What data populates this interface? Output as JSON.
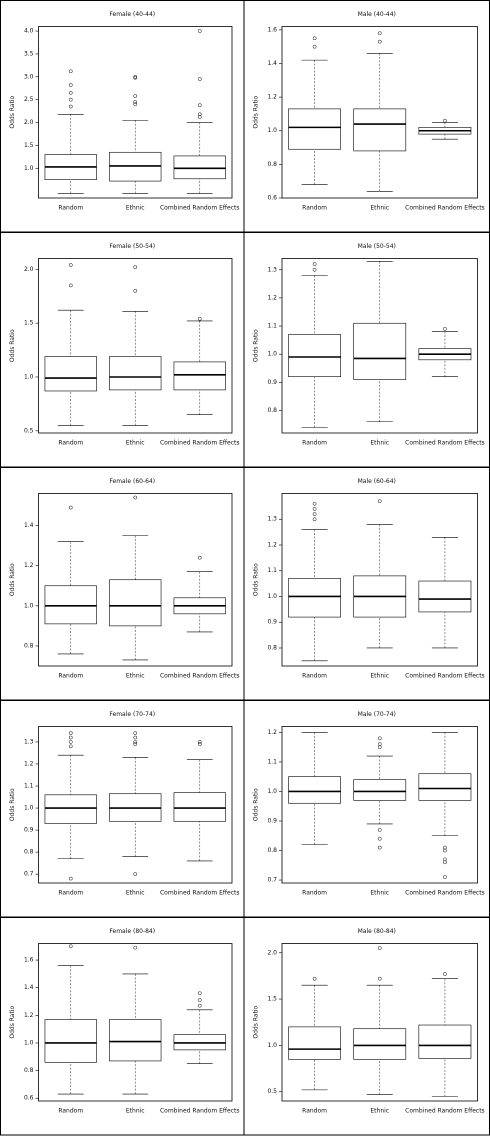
{
  "chart_data": [
    {
      "type": "box",
      "title": "Female (40-44)",
      "ylabel": "Odds Ratio",
      "categories": [
        "Random",
        "Ethnic",
        "Combined Random Effects"
      ],
      "boxes": [
        {
          "min": 0.45,
          "q1": 0.75,
          "median": 1.03,
          "q3": 1.3,
          "max": 2.18,
          "outliers": [
            2.35,
            2.5,
            2.65,
            2.82,
            3.12
          ]
        },
        {
          "min": 0.45,
          "q1": 0.72,
          "median": 1.05,
          "q3": 1.35,
          "max": 2.05,
          "outliers": [
            2.4,
            2.45,
            2.58,
            2.98,
            3.0
          ]
        },
        {
          "min": 0.45,
          "q1": 0.77,
          "median": 1.0,
          "q3": 1.27,
          "max": 2.0,
          "outliers": [
            2.12,
            2.18,
            2.38,
            2.95,
            4.0
          ]
        }
      ],
      "ylim": [
        0.35,
        4.1
      ],
      "yticks": [
        {
          "value": 1,
          "label": "1.0"
        },
        1.5,
        {
          "value": 2,
          "label": "2.0"
        },
        2.5,
        {
          "value": 3,
          "label": "3.0"
        },
        3.5,
        {
          "value": 4,
          "label": "4.0"
        }
      ]
    },
    {
      "type": "box",
      "title": "Male (40-44)",
      "ylabel": "Odds Ratio",
      "categories": [
        "Random",
        "Ethnic",
        "Combined Random Effects"
      ],
      "boxes": [
        {
          "min": 0.68,
          "q1": 0.89,
          "median": 1.02,
          "q3": 1.13,
          "max": 1.42,
          "outliers": [
            1.5,
            1.55
          ]
        },
        {
          "min": 0.64,
          "q1": 0.88,
          "median": 1.04,
          "q3": 1.13,
          "max": 1.46,
          "outliers": [
            1.53,
            1.58
          ]
        },
        {
          "min": 0.95,
          "q1": 0.98,
          "median": 1.0,
          "q3": 1.02,
          "max": 1.05,
          "outliers": [
            1.06
          ]
        }
      ],
      "ylim": [
        0.6,
        1.62
      ],
      "yticks": [
        0.6,
        0.8,
        {
          "value": 1,
          "label": "1.0"
        },
        1.2,
        1.4,
        1.6
      ]
    },
    {
      "type": "box",
      "title": "Female (50-54)",
      "ylabel": "Odds Ratio",
      "categories": [
        "Random",
        "Ethnic",
        "Combined Random Effects"
      ],
      "boxes": [
        {
          "min": 0.55,
          "q1": 0.87,
          "median": 0.99,
          "q3": 1.19,
          "max": 1.62,
          "outliers": [
            1.85,
            2.04
          ]
        },
        {
          "min": 0.55,
          "q1": 0.88,
          "median": 1.0,
          "q3": 1.19,
          "max": 1.61,
          "outliers": [
            1.8,
            2.02
          ]
        },
        {
          "min": 0.65,
          "q1": 0.88,
          "median": 1.02,
          "q3": 1.14,
          "max": 1.52,
          "outliers": [
            1.54
          ]
        }
      ],
      "ylim": [
        0.48,
        2.1
      ],
      "yticks": [
        0.5,
        {
          "value": 1,
          "label": "1.0"
        },
        1.5,
        {
          "value": 2,
          "label": "2.0"
        }
      ]
    },
    {
      "type": "box",
      "title": "Male (50-54)",
      "ylabel": "Odds Ratio",
      "categories": [
        "Random",
        "Ethnic",
        "Combined Random Effects"
      ],
      "boxes": [
        {
          "min": 0.74,
          "q1": 0.92,
          "median": 0.99,
          "q3": 1.07,
          "max": 1.28,
          "outliers": [
            1.3,
            1.32
          ]
        },
        {
          "min": 0.76,
          "q1": 0.91,
          "median": 0.985,
          "q3": 1.11,
          "max": 1.33,
          "outliers": []
        },
        {
          "min": 0.92,
          "q1": 0.98,
          "median": 1.0,
          "q3": 1.02,
          "max": 1.08,
          "outliers": [
            1.09
          ]
        }
      ],
      "ylim": [
        0.72,
        1.34
      ],
      "yticks": [
        0.8,
        0.9,
        {
          "value": 1,
          "label": "1.0"
        },
        1.1,
        1.2,
        1.3
      ]
    },
    {
      "type": "box",
      "title": "Female (60-64)",
      "ylabel": "Odds Ratio",
      "categories": [
        "Random",
        "Ethnic",
        "Combined Random Effects"
      ],
      "boxes": [
        {
          "min": 0.76,
          "q1": 0.91,
          "median": 1.0,
          "q3": 1.1,
          "max": 1.32,
          "outliers": [
            1.49
          ]
        },
        {
          "min": 0.73,
          "q1": 0.9,
          "median": 1.0,
          "q3": 1.13,
          "max": 1.35,
          "outliers": [
            1.54
          ]
        },
        {
          "min": 0.87,
          "q1": 0.96,
          "median": 1.0,
          "q3": 1.04,
          "max": 1.17,
          "outliers": [
            1.24
          ]
        }
      ],
      "ylim": [
        0.7,
        1.56
      ],
      "yticks": [
        0.8,
        {
          "value": 1,
          "label": "1.0"
        },
        1.2,
        1.4
      ]
    },
    {
      "type": "box",
      "title": "Male (60-64)",
      "ylabel": "Odds Ratio",
      "categories": [
        "Random",
        "Ethnic",
        "Combined Random Effects"
      ],
      "boxes": [
        {
          "min": 0.75,
          "q1": 0.92,
          "median": 1.0,
          "q3": 1.07,
          "max": 1.26,
          "outliers": [
            1.3,
            1.32,
            1.34,
            1.36
          ]
        },
        {
          "min": 0.8,
          "q1": 0.92,
          "median": 1.0,
          "q3": 1.08,
          "max": 1.28,
          "outliers": [
            1.37
          ]
        },
        {
          "min": 0.8,
          "q1": 0.94,
          "median": 0.99,
          "q3": 1.06,
          "max": 1.23,
          "outliers": []
        }
      ],
      "ylim": [
        0.73,
        1.4
      ],
      "yticks": [
        0.8,
        0.9,
        {
          "value": 1,
          "label": "1.0"
        },
        1.1,
        1.2,
        1.3
      ]
    },
    {
      "type": "box",
      "title": "Female (70-74)",
      "ylabel": "Odds Ratio",
      "categories": [
        "Random",
        "Ethnic",
        "Combined Random Effects"
      ],
      "boxes": [
        {
          "min": 0.77,
          "q1": 0.93,
          "median": 1.0,
          "q3": 1.06,
          "max": 1.24,
          "outliers": [
            1.28,
            1.3,
            1.32,
            1.34,
            0.68
          ]
        },
        {
          "min": 0.78,
          "q1": 0.94,
          "median": 1.0,
          "q3": 1.065,
          "max": 1.23,
          "outliers": [
            1.29,
            1.3,
            1.32,
            1.34,
            0.7
          ]
        },
        {
          "min": 0.76,
          "q1": 0.94,
          "median": 1.0,
          "q3": 1.07,
          "max": 1.22,
          "outliers": [
            1.29,
            1.3
          ]
        }
      ],
      "ylim": [
        0.66,
        1.37
      ],
      "yticks": [
        0.7,
        0.8,
        0.9,
        {
          "value": 1,
          "label": "1.0"
        },
        1.1,
        1.2,
        1.3
      ]
    },
    {
      "type": "box",
      "title": "Male (70-74)",
      "ylabel": "Odds Ratio",
      "categories": [
        "Random",
        "Ethnic",
        "Combined Random Effects"
      ],
      "boxes": [
        {
          "min": 0.82,
          "q1": 0.96,
          "median": 1.0,
          "q3": 1.05,
          "max": 1.2,
          "outliers": []
        },
        {
          "min": 0.89,
          "q1": 0.97,
          "median": 1.0,
          "q3": 1.04,
          "max": 1.12,
          "outliers": [
            1.15,
            1.16,
            1.18,
            0.87,
            0.84,
            0.81
          ]
        },
        {
          "min": 0.85,
          "q1": 0.97,
          "median": 1.01,
          "q3": 1.06,
          "max": 1.2,
          "outliers": [
            0.81,
            0.8,
            0.77,
            0.76,
            0.71
          ]
        }
      ],
      "ylim": [
        0.69,
        1.22
      ],
      "yticks": [
        0.7,
        0.8,
        0.9,
        {
          "value": 1,
          "label": "1.0"
        },
        1.1,
        1.2
      ]
    },
    {
      "type": "box",
      "title": "Female (80-84)",
      "ylabel": "Odds Ratio",
      "categories": [
        "Random",
        "Ethnic",
        "Combined Random Effects"
      ],
      "boxes": [
        {
          "min": 0.63,
          "q1": 0.86,
          "median": 1.0,
          "q3": 1.17,
          "max": 1.56,
          "outliers": [
            1.7
          ]
        },
        {
          "min": 0.63,
          "q1": 0.87,
          "median": 1.01,
          "q3": 1.17,
          "max": 1.5,
          "outliers": [
            1.69
          ]
        },
        {
          "min": 0.85,
          "q1": 0.95,
          "median": 1.0,
          "q3": 1.06,
          "max": 1.24,
          "outliers": [
            1.27,
            1.31,
            1.36
          ]
        }
      ],
      "ylim": [
        0.58,
        1.72
      ],
      "yticks": [
        0.6,
        0.8,
        {
          "value": 1,
          "label": "1.0"
        },
        1.2,
        1.4,
        1.6
      ]
    },
    {
      "type": "box",
      "title": "Male (80-84)",
      "ylabel": "Odds Ratio",
      "categories": [
        "Random",
        "Ethnic",
        "Combined Random Effects"
      ],
      "boxes": [
        {
          "min": 0.52,
          "q1": 0.85,
          "median": 0.96,
          "q3": 1.2,
          "max": 1.65,
          "outliers": [
            1.72
          ]
        },
        {
          "min": 0.47,
          "q1": 0.85,
          "median": 1.0,
          "q3": 1.18,
          "max": 1.65,
          "outliers": [
            1.72,
            2.05
          ]
        },
        {
          "min": 0.45,
          "q1": 0.86,
          "median": 1.0,
          "q3": 1.22,
          "max": 1.72,
          "outliers": [
            1.77
          ]
        }
      ],
      "ylim": [
        0.4,
        2.1
      ],
      "yticks": [
        0.5,
        {
          "value": 1,
          "label": "1.0"
        },
        1.5,
        {
          "value": 2,
          "label": "2.0"
        }
      ]
    }
  ]
}
